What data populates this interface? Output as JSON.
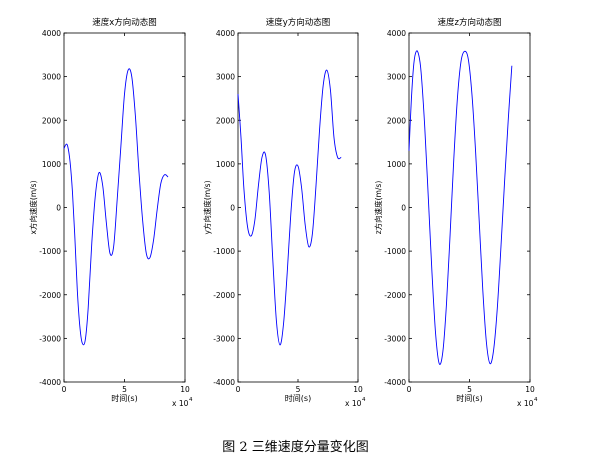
{
  "caption": "图 2  三维速度分量变化图",
  "chart_data": [
    {
      "type": "line",
      "title": "速度x方向动态图",
      "xlabel": "时间(s)",
      "ylabel": "x方向速度(m/s)",
      "x_exponent_label": "x 10",
      "x_exponent": "4",
      "xlim": [
        0,
        10
      ],
      "ylim": [
        -4000,
        4000
      ],
      "x_ticks": [
        0,
        5,
        10
      ],
      "y_ticks": [
        -4000,
        -3000,
        -2000,
        -1000,
        0,
        1000,
        2000,
        3000,
        4000
      ],
      "grid": false,
      "color": "#0000ff",
      "x": [
        0,
        0.15,
        0.3,
        0.5,
        0.7,
        0.9,
        1.1,
        1.3,
        1.5,
        1.75,
        2.0,
        2.3,
        2.6,
        2.9,
        3.2,
        3.5,
        3.8,
        4.1,
        4.4,
        4.7,
        5.0,
        5.3,
        5.6,
        5.9,
        6.2,
        6.5,
        6.8,
        7.1,
        7.4,
        7.7,
        8.0,
        8.3,
        8.6
      ],
      "y": [
        1350,
        1440,
        1410,
        1050,
        350,
        -700,
        -1900,
        -2700,
        -3100,
        -3050,
        -2300,
        -800,
        300,
        800,
        500,
        -350,
        -1050,
        -900,
        200,
        1400,
        2600,
        3150,
        3000,
        2100,
        800,
        -300,
        -1050,
        -1150,
        -750,
        -50,
        550,
        750,
        700
      ]
    },
    {
      "type": "line",
      "title": "速度y方向动态图",
      "xlabel": "时间(s)",
      "ylabel": "y方向速度(m/s)",
      "x_exponent_label": "x 10",
      "x_exponent": "4",
      "xlim": [
        0,
        10
      ],
      "ylim": [
        -4000,
        4000
      ],
      "x_ticks": [
        0,
        5,
        10
      ],
      "y_ticks": [
        -4000,
        -3000,
        -2000,
        -1000,
        0,
        1000,
        2000,
        3000,
        4000
      ],
      "grid": false,
      "color": "#0000ff",
      "x": [
        0,
        0.25,
        0.5,
        0.8,
        1.1,
        1.4,
        1.7,
        2.0,
        2.3,
        2.6,
        2.9,
        3.2,
        3.5,
        3.8,
        4.1,
        4.4,
        4.7,
        5.0,
        5.3,
        5.6,
        5.9,
        6.2,
        6.5,
        6.8,
        7.1,
        7.4,
        7.7,
        8.0,
        8.3,
        8.6
      ],
      "y": [
        2600,
        1600,
        400,
        -450,
        -650,
        -300,
        500,
        1150,
        1200,
        350,
        -1200,
        -2600,
        -3150,
        -2650,
        -1500,
        -150,
        800,
        950,
        450,
        -400,
        -900,
        -600,
        500,
        1800,
        2800,
        3150,
        2700,
        1600,
        1150,
        1150
      ]
    },
    {
      "type": "line",
      "title": "速度z方向动态图",
      "xlabel": "时间(s)",
      "ylabel": "z方向速度(m/s)",
      "x_exponent_label": "x 10",
      "x_exponent": "4",
      "xlim": [
        0,
        10
      ],
      "ylim": [
        -4000,
        4000
      ],
      "x_ticks": [
        0,
        5,
        10
      ],
      "y_ticks": [
        -4000,
        -3000,
        -2000,
        -1000,
        0,
        1000,
        2000,
        3000,
        4000
      ],
      "grid": false,
      "color": "#0000ff",
      "x": [
        0,
        0.2,
        0.4,
        0.6,
        0.8,
        1.0,
        1.3,
        1.6,
        1.9,
        2.2,
        2.5,
        2.8,
        3.1,
        3.4,
        3.7,
        4.0,
        4.3,
        4.6,
        4.9,
        5.2,
        5.5,
        5.8,
        6.1,
        6.4,
        6.7,
        7.0,
        7.3,
        7.6,
        7.9,
        8.2,
        8.5
      ],
      "y": [
        1300,
        2500,
        3300,
        3580,
        3500,
        3100,
        1850,
        200,
        -1500,
        -2900,
        -3580,
        -3300,
        -2200,
        -600,
        1100,
        2500,
        3350,
        3580,
        3400,
        2600,
        1300,
        -300,
        -1900,
        -3100,
        -3580,
        -3250,
        -2300,
        -900,
        600,
        2000,
        3250
      ]
    }
  ]
}
